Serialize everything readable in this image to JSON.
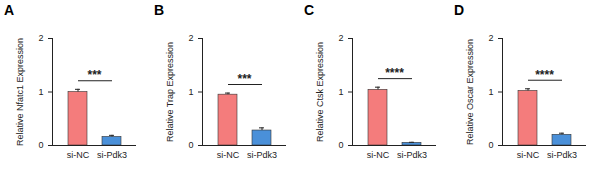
{
  "chart_data": [
    {
      "type": "bar",
      "title": "A",
      "ylabel": "Relative Nfatc1 Expression",
      "categories": [
        "si-NC",
        "si-Pdk3"
      ],
      "values": [
        1.0,
        0.16
      ],
      "errors": [
        0.05,
        0.03
      ],
      "colors": [
        "#f47c7c",
        "#4a90d9"
      ],
      "ylim": [
        0,
        2
      ],
      "yticks": [
        0,
        1,
        2
      ],
      "annotation": "***"
    },
    {
      "type": "bar",
      "title": "B",
      "ylabel": "Relative Trap Expression",
      "categories": [
        "si-NC",
        "si-Pdk3"
      ],
      "values": [
        0.95,
        0.28
      ],
      "errors": [
        0.03,
        0.05
      ],
      "colors": [
        "#f47c7c",
        "#4a90d9"
      ],
      "ylim": [
        0,
        2
      ],
      "yticks": [
        0,
        1,
        2
      ],
      "annotation": "***"
    },
    {
      "type": "bar",
      "title": "C",
      "ylabel": "Relative Ctsk Expression",
      "categories": [
        "si-NC",
        "si-Pdk3"
      ],
      "values": [
        1.04,
        0.05
      ],
      "errors": [
        0.05,
        0.01
      ],
      "colors": [
        "#f47c7c",
        "#4a90d9"
      ],
      "ylim": [
        0,
        2
      ],
      "yticks": [
        0,
        1,
        2
      ],
      "annotation": "****"
    },
    {
      "type": "bar",
      "title": "D",
      "ylabel": "Relative Oscar Expression",
      "categories": [
        "si-NC",
        "si-Pdk3"
      ],
      "values": [
        1.02,
        0.2
      ],
      "errors": [
        0.04,
        0.03
      ],
      "colors": [
        "#f47c7c",
        "#4a90d9"
      ],
      "ylim": [
        0,
        2
      ],
      "yticks": [
        0,
        1,
        2
      ],
      "annotation": "****"
    }
  ]
}
